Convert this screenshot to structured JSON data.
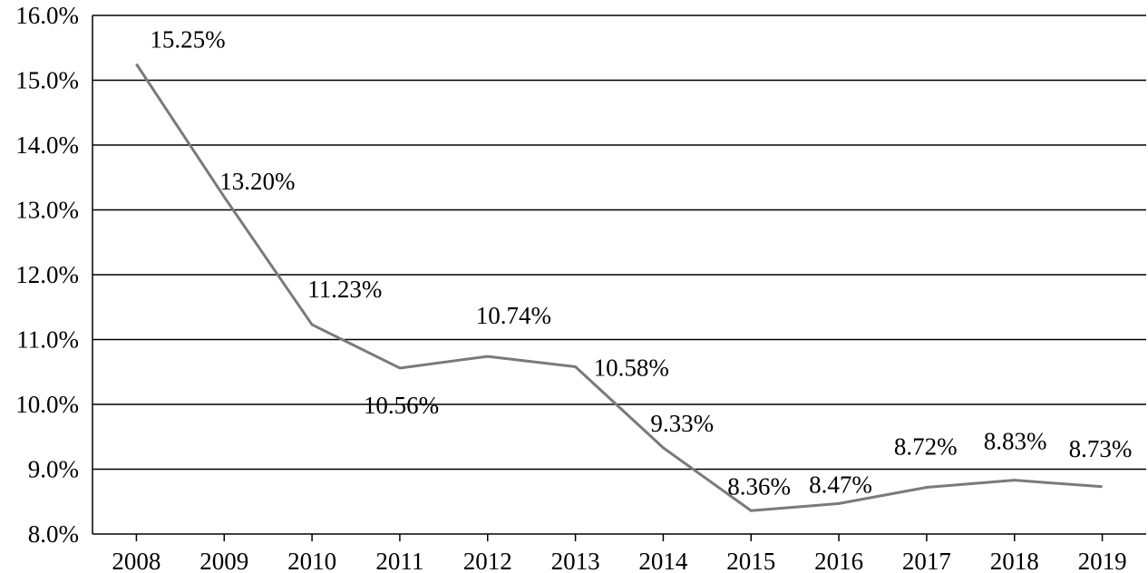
{
  "chart_data": {
    "type": "line",
    "title": "",
    "xlabel": "",
    "ylabel": "",
    "categories": [
      "2008",
      "2009",
      "2010",
      "2011",
      "2012",
      "2013",
      "2014",
      "2015",
      "2016",
      "2017",
      "2018",
      "2019"
    ],
    "series": [
      {
        "values": [
          15.25,
          13.2,
          11.23,
          10.56,
          10.74,
          10.58,
          9.33,
          8.36,
          8.47,
          8.72,
          8.83,
          8.73
        ],
        "labels": [
          "15.25%",
          "13.20%",
          "11.23%",
          "10.56%",
          "10.74%",
          "10.58%",
          "9.33%",
          "8.36%",
          "8.47%",
          "8.72%",
          "8.83%",
          "8.73%"
        ],
        "color": "#7a7a7a"
      }
    ],
    "ylim": [
      8.0,
      16.0
    ],
    "yticks": [
      8.0,
      9.0,
      10.0,
      11.0,
      12.0,
      13.0,
      14.0,
      15.0,
      16.0
    ],
    "ytick_labels": [
      "8.0%",
      "9.0%",
      "10.0%",
      "11.0%",
      "12.0%",
      "13.0%",
      "14.0%",
      "15.0%",
      "16.0%"
    ],
    "grid": true,
    "legend": "none"
  }
}
